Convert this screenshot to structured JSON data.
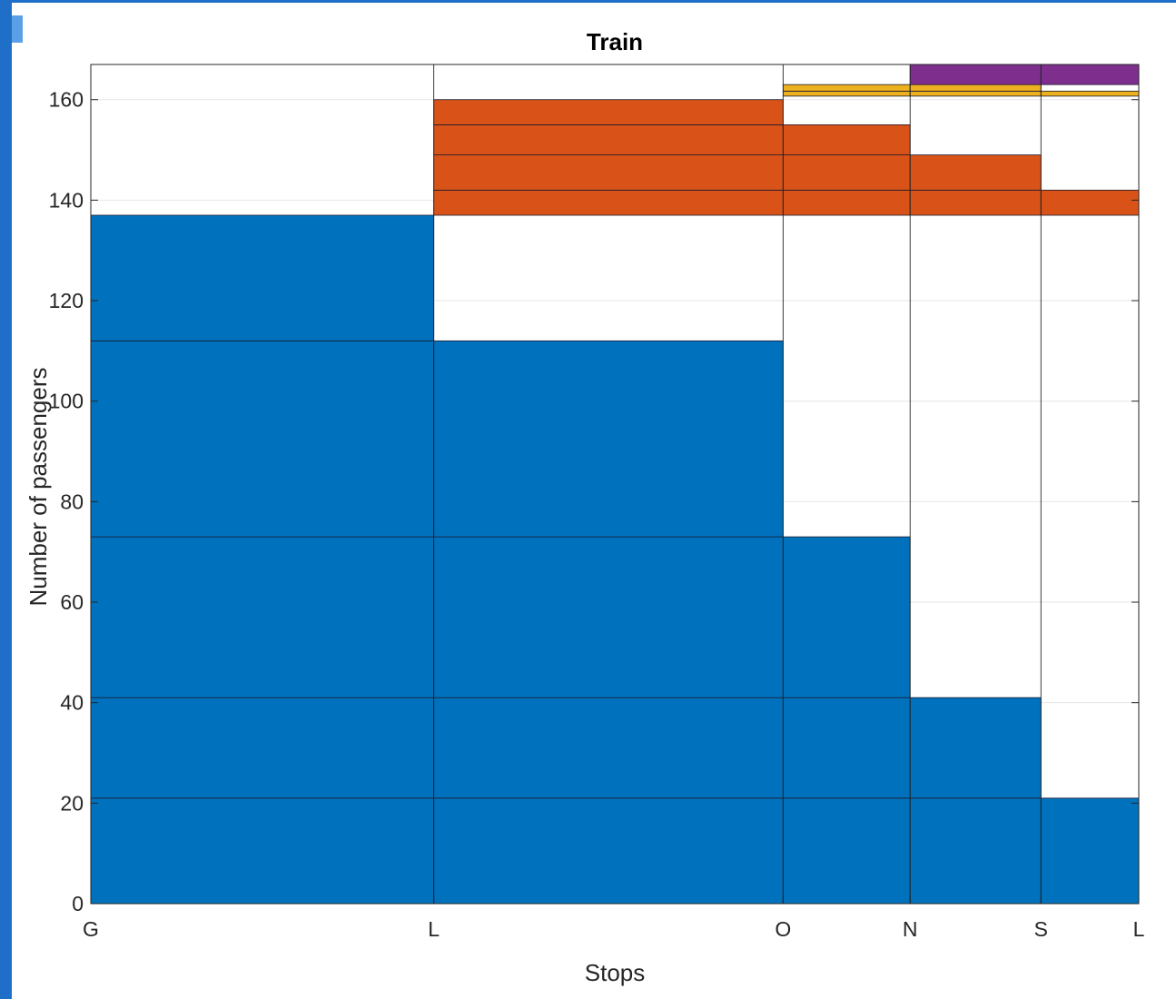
{
  "chart_data": {
    "type": "bar",
    "layout": "stacked-variable-width",
    "title": "Train",
    "xlabel": "Stops",
    "ylabel": "Number of passengers",
    "stops": [
      {
        "label": "G",
        "x": 0
      },
      {
        "label": "L",
        "x": 2.7
      },
      {
        "label": "O",
        "x": 5.45
      },
      {
        "label": "N",
        "x": 6.45
      },
      {
        "label": "S",
        "x": 7.48
      },
      {
        "label": "L",
        "x": 8.25
      }
    ],
    "ylim": [
      0,
      167
    ],
    "yticks": [
      0,
      20,
      40,
      60,
      80,
      100,
      120,
      140,
      160
    ],
    "grid": true,
    "colors": {
      "blue": "#0072BD",
      "orange": "#D95319",
      "yellow": "#EDB120",
      "purple": "#7E2F8E"
    },
    "segments": [
      {
        "color": "blue",
        "x0": 0,
        "x1": 2.7,
        "y0": 0,
        "y1": 21
      },
      {
        "color": "blue",
        "x0": 0,
        "x1": 2.7,
        "y0": 21,
        "y1": 41
      },
      {
        "color": "blue",
        "x0": 0,
        "x1": 2.7,
        "y0": 41,
        "y1": 73
      },
      {
        "color": "blue",
        "x0": 0,
        "x1": 2.7,
        "y0": 73,
        "y1": 112
      },
      {
        "color": "blue",
        "x0": 0,
        "x1": 2.7,
        "y0": 112,
        "y1": 137
      },
      {
        "color": "blue",
        "x0": 2.7,
        "x1": 5.45,
        "y0": 0,
        "y1": 21
      },
      {
        "color": "blue",
        "x0": 2.7,
        "x1": 5.45,
        "y0": 21,
        "y1": 41
      },
      {
        "color": "blue",
        "x0": 2.7,
        "x1": 5.45,
        "y0": 41,
        "y1": 73
      },
      {
        "color": "blue",
        "x0": 2.7,
        "x1": 5.45,
        "y0": 73,
        "y1": 112
      },
      {
        "color": "orange",
        "x0": 2.7,
        "x1": 5.45,
        "y0": 137,
        "y1": 142
      },
      {
        "color": "orange",
        "x0": 2.7,
        "x1": 5.45,
        "y0": 142,
        "y1": 149
      },
      {
        "color": "orange",
        "x0": 2.7,
        "x1": 5.45,
        "y0": 149,
        "y1": 155
      },
      {
        "color": "orange",
        "x0": 2.7,
        "x1": 5.45,
        "y0": 155,
        "y1": 160
      },
      {
        "color": "blue",
        "x0": 5.45,
        "x1": 6.45,
        "y0": 0,
        "y1": 21
      },
      {
        "color": "blue",
        "x0": 5.45,
        "x1": 6.45,
        "y0": 21,
        "y1": 41
      },
      {
        "color": "blue",
        "x0": 5.45,
        "x1": 6.45,
        "y0": 41,
        "y1": 73
      },
      {
        "color": "orange",
        "x0": 5.45,
        "x1": 6.45,
        "y0": 137,
        "y1": 142
      },
      {
        "color": "orange",
        "x0": 5.45,
        "x1": 6.45,
        "y0": 142,
        "y1": 149
      },
      {
        "color": "orange",
        "x0": 5.45,
        "x1": 6.45,
        "y0": 149,
        "y1": 155
      },
      {
        "color": "yellow",
        "x0": 5.45,
        "x1": 6.45,
        "y0": 160.7,
        "y1": 161.7
      },
      {
        "color": "yellow",
        "x0": 5.45,
        "x1": 6.45,
        "y0": 161.7,
        "y1": 163
      },
      {
        "color": "blue",
        "x0": 6.45,
        "x1": 7.48,
        "y0": 0,
        "y1": 21
      },
      {
        "color": "blue",
        "x0": 6.45,
        "x1": 7.48,
        "y0": 21,
        "y1": 41
      },
      {
        "color": "orange",
        "x0": 6.45,
        "x1": 7.48,
        "y0": 137,
        "y1": 142
      },
      {
        "color": "orange",
        "x0": 6.45,
        "x1": 7.48,
        "y0": 142,
        "y1": 149
      },
      {
        "color": "yellow",
        "x0": 6.45,
        "x1": 7.48,
        "y0": 160.7,
        "y1": 161.7
      },
      {
        "color": "yellow",
        "x0": 6.45,
        "x1": 7.48,
        "y0": 161.7,
        "y1": 163
      },
      {
        "color": "purple",
        "x0": 6.45,
        "x1": 7.48,
        "y0": 163,
        "y1": 167
      },
      {
        "color": "blue",
        "x0": 7.48,
        "x1": 8.25,
        "y0": 0,
        "y1": 21
      },
      {
        "color": "orange",
        "x0": 7.48,
        "x1": 8.25,
        "y0": 137,
        "y1": 142
      },
      {
        "color": "yellow",
        "x0": 7.48,
        "x1": 8.25,
        "y0": 160.7,
        "y1": 161.7
      },
      {
        "color": "purple",
        "x0": 7.48,
        "x1": 8.25,
        "y0": 163,
        "y1": 167
      }
    ]
  }
}
